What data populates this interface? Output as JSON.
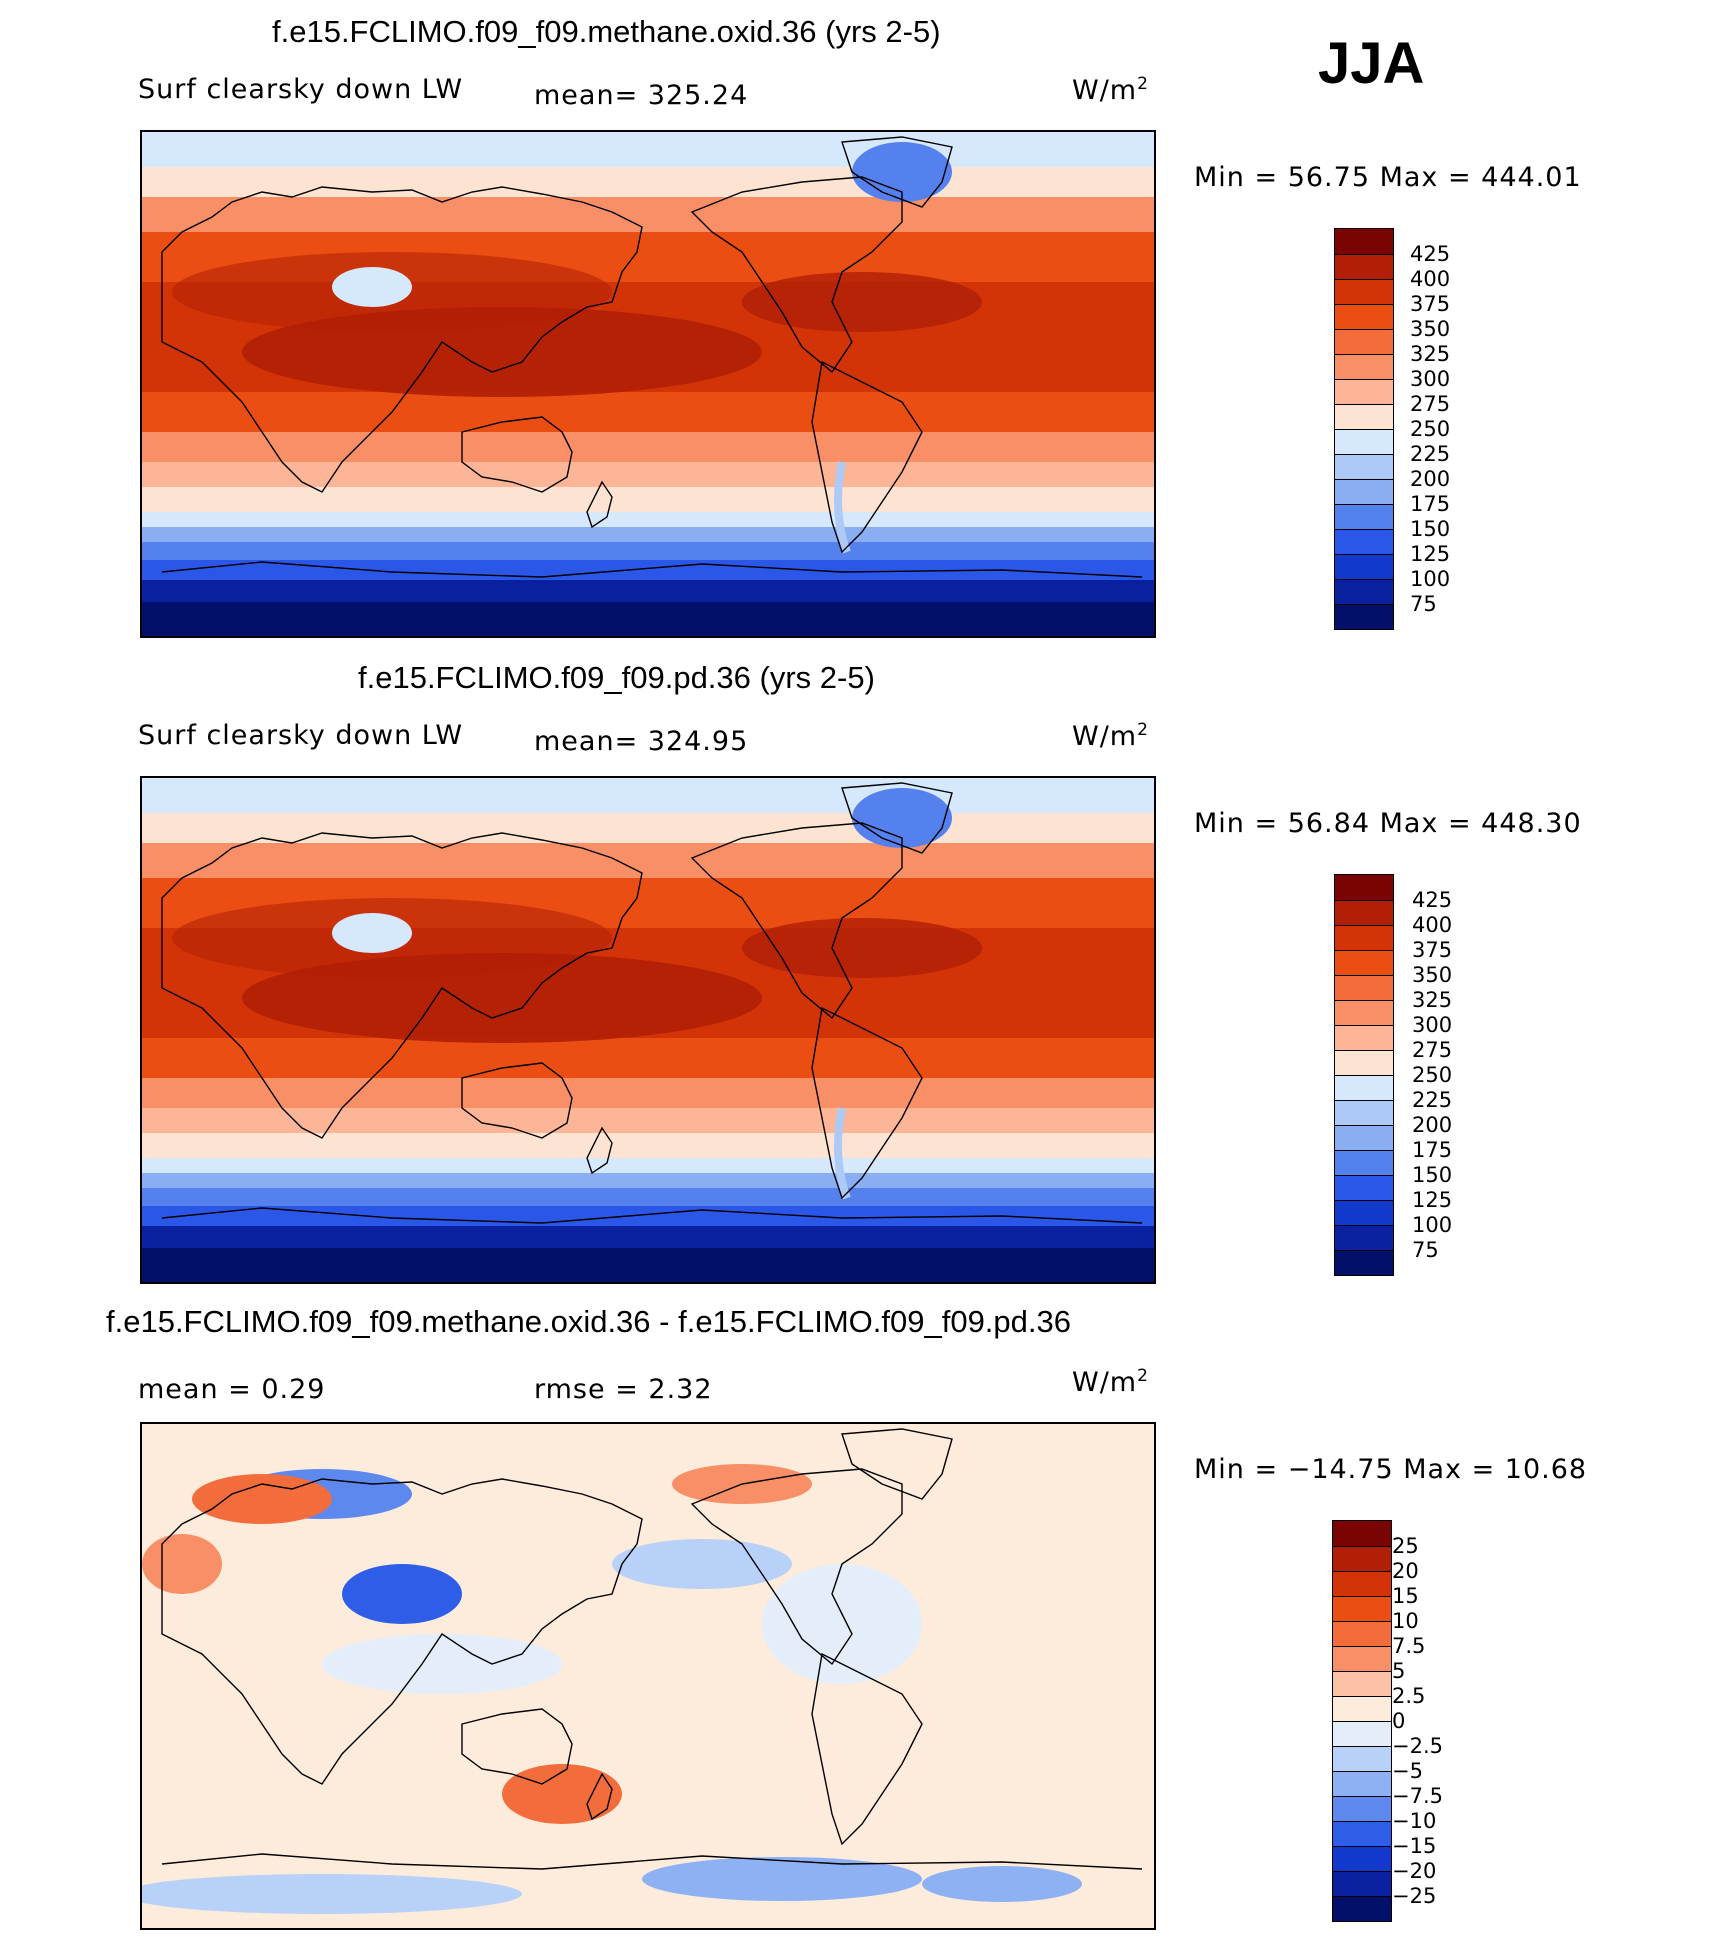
{
  "season": "JJA",
  "panels": [
    {
      "id": "p1",
      "title": "f.e15.FCLIMO.f09_f09.methane.oxid.36 (yrs 2-5)",
      "field": "Surf clearsky down LW",
      "stat": "mean= 325.24",
      "units": "W/m",
      "units_exp": "2",
      "minmax": "Min =   56.75 Max = 444.01",
      "colorbar": {
        "labels": [
          "425",
          "400",
          "375",
          "350",
          "325",
          "300",
          "275",
          "250",
          "225",
          "200",
          "175",
          "150",
          "125",
          "100",
          "75"
        ],
        "colors": [
          "#7a0403",
          "#b01f06",
          "#d23407",
          "#ea4e12",
          "#f36d3c",
          "#f88f66",
          "#fcb596",
          "#fde4d2",
          "#d6e8fb",
          "#adcaf7",
          "#8aaef2",
          "#5581ee",
          "#2b57e8",
          "#1339cc",
          "#09219e",
          "#031069"
        ]
      },
      "map": {
        "style": "abs"
      }
    },
    {
      "id": "p2",
      "title": "f.e15.FCLIMO.f09_f09.pd.36 (yrs 2-5)",
      "field": "Surf clearsky down LW",
      "stat": "mean= 324.95",
      "units": "W/m",
      "units_exp": "2",
      "minmax": "Min =   56.84 Max = 448.30",
      "colorbar": {
        "labels": [
          "425",
          "400",
          "375",
          "350",
          "325",
          "300",
          "275",
          "250",
          "225",
          "200",
          "175",
          "150",
          "125",
          "100",
          "75"
        ],
        "colors": [
          "#7a0403",
          "#b01f06",
          "#d23407",
          "#ea4e12",
          "#f36d3c",
          "#f88f66",
          "#fcb596",
          "#fde4d2",
          "#d6e8fb",
          "#adcaf7",
          "#8aaef2",
          "#5581ee",
          "#2b57e8",
          "#1339cc",
          "#09219e",
          "#031069"
        ]
      },
      "map": {
        "style": "abs"
      }
    },
    {
      "id": "p3",
      "title": "f.e15.FCLIMO.f09_f09.methane.oxid.36 - f.e15.FCLIMO.f09_f09.pd.36",
      "field": "mean =    0.29",
      "stat": "rmse =    2.32",
      "units": "W/m",
      "units_exp": "2",
      "minmax": "Min = −14.75 Max =   10.68",
      "colorbar": {
        "labels": [
          "25",
          "20",
          "15",
          "10",
          "7.5",
          "5",
          "2.5",
          "0",
          "−2.5",
          "−5",
          "−7.5",
          "−10",
          "−15",
          "−20",
          "−25"
        ],
        "colors": [
          "#7a0403",
          "#b01f06",
          "#d23407",
          "#ea4e12",
          "#f36d3c",
          "#f88f66",
          "#fcc2a6",
          "#fdebdc",
          "#e4eefb",
          "#b8d1f8",
          "#8eb1f3",
          "#5d88ee",
          "#2e5de8",
          "#1339cc",
          "#09219e",
          "#031069"
        ]
      },
      "map": {
        "style": "diff"
      }
    }
  ]
}
